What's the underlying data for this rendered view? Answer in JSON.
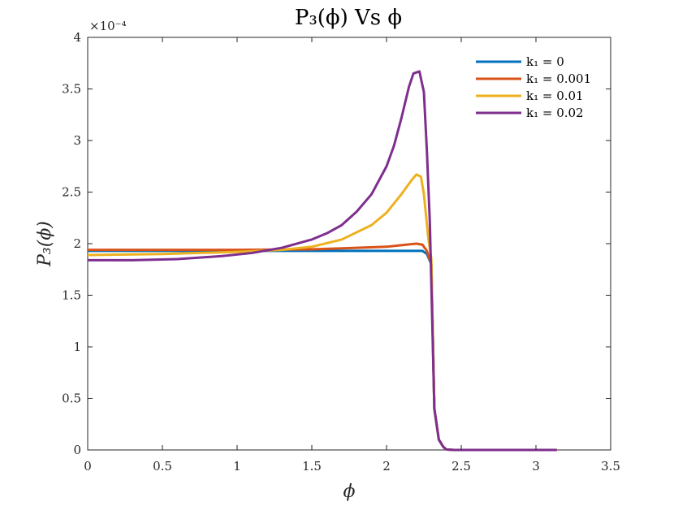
{
  "chart_data": {
    "type": "line",
    "title": "P₃(ϕ) Vs ϕ",
    "xlabel": "ϕ",
    "ylabel": "P₃(ϕ)",
    "y_exponent_label": "×10⁻⁴",
    "xlim": [
      0,
      3.5
    ],
    "ylim": [
      0,
      0.0004
    ],
    "x_ticks": [
      0,
      0.5,
      1,
      1.5,
      2,
      2.5,
      3,
      3.5
    ],
    "x_tick_labels": [
      "0",
      "0.5",
      "1",
      "1.5",
      "2",
      "2.5",
      "3",
      "3.5"
    ],
    "y_ticks": [
      0,
      5e-05,
      0.0001,
      0.00015,
      0.0002,
      0.00025,
      0.0003,
      0.00035,
      0.0004
    ],
    "y_tick_labels": [
      "0",
      "0.5",
      "1",
      "1.5",
      "2",
      "2.5",
      "3",
      "3.5",
      "4"
    ],
    "grid": false,
    "legend_position": "top-right",
    "series": [
      {
        "name": "k₁ = 0",
        "color": "#0072BD",
        "points": [
          [
            0,
            0.000193
          ],
          [
            0.5,
            0.000193
          ],
          [
            1.0,
            0.000193
          ],
          [
            1.5,
            0.000193
          ],
          [
            2.0,
            0.000193
          ],
          [
            2.1,
            0.000193
          ],
          [
            2.2,
            0.000193
          ],
          [
            2.24,
            0.000193
          ],
          [
            2.27,
            0.00019
          ],
          [
            2.3,
            0.00018
          ],
          [
            2.32,
            4e-05
          ],
          [
            2.35,
            1e-05
          ],
          [
            2.38,
            3e-06
          ],
          [
            2.4,
            5e-07
          ],
          [
            2.45,
            0
          ],
          [
            2.6,
            0
          ],
          [
            3.14,
            0
          ]
        ]
      },
      {
        "name": "k₁ = 0.001",
        "color": "#D95319",
        "points": [
          [
            0,
            0.000194
          ],
          [
            0.5,
            0.000194
          ],
          [
            1.0,
            0.000194
          ],
          [
            1.5,
            0.0001945
          ],
          [
            1.8,
            0.000196
          ],
          [
            2.0,
            0.000197
          ],
          [
            2.1,
            0.0001985
          ],
          [
            2.2,
            0.0002
          ],
          [
            2.24,
            0.000199
          ],
          [
            2.27,
            0.000193
          ],
          [
            2.3,
            0.00018
          ],
          [
            2.32,
            4e-05
          ],
          [
            2.35,
            1e-05
          ],
          [
            2.38,
            3e-06
          ],
          [
            2.4,
            5e-07
          ],
          [
            2.45,
            0
          ],
          [
            2.6,
            0
          ],
          [
            3.14,
            0
          ]
        ]
      },
      {
        "name": "k₁ = 0.01",
        "color": "#EDB120",
        "points": [
          [
            0,
            0.000189
          ],
          [
            0.5,
            0.00019
          ],
          [
            1.0,
            0.000192
          ],
          [
            1.3,
            0.000194
          ],
          [
            1.5,
            0.000197
          ],
          [
            1.7,
            0.000204
          ],
          [
            1.9,
            0.000218
          ],
          [
            2.0,
            0.00023
          ],
          [
            2.1,
            0.000248
          ],
          [
            2.17,
            0.000262
          ],
          [
            2.2,
            0.000267
          ],
          [
            2.23,
            0.000265
          ],
          [
            2.25,
            0.000248
          ],
          [
            2.28,
            0.000205
          ],
          [
            2.3,
            0.000185
          ],
          [
            2.32,
            4e-05
          ],
          [
            2.35,
            1e-05
          ],
          [
            2.38,
            3e-06
          ],
          [
            2.4,
            5e-07
          ],
          [
            2.45,
            0
          ],
          [
            2.6,
            0
          ],
          [
            3.14,
            0
          ]
        ]
      },
      {
        "name": "k₁ = 0.02",
        "color": "#7E2F8E",
        "points": [
          [
            0,
            0.000184
          ],
          [
            0.3,
            0.000184
          ],
          [
            0.6,
            0.000185
          ],
          [
            0.9,
            0.000188
          ],
          [
            1.1,
            0.000191
          ],
          [
            1.3,
            0.000196
          ],
          [
            1.5,
            0.000204
          ],
          [
            1.6,
            0.00021
          ],
          [
            1.7,
            0.000218
          ],
          [
            1.8,
            0.000231
          ],
          [
            1.9,
            0.000248
          ],
          [
            2.0,
            0.000275
          ],
          [
            2.05,
            0.000295
          ],
          [
            2.1,
            0.000322
          ],
          [
            2.15,
            0.000352
          ],
          [
            2.18,
            0.000365
          ],
          [
            2.22,
            0.000367
          ],
          [
            2.25,
            0.000347
          ],
          [
            2.27,
            0.00029
          ],
          [
            2.29,
            0.00022
          ],
          [
            2.32,
            4e-05
          ],
          [
            2.35,
            1e-05
          ],
          [
            2.38,
            3e-06
          ],
          [
            2.4,
            5e-07
          ],
          [
            2.45,
            0
          ],
          [
            2.6,
            0
          ],
          [
            3.14,
            0
          ]
        ]
      }
    ]
  }
}
